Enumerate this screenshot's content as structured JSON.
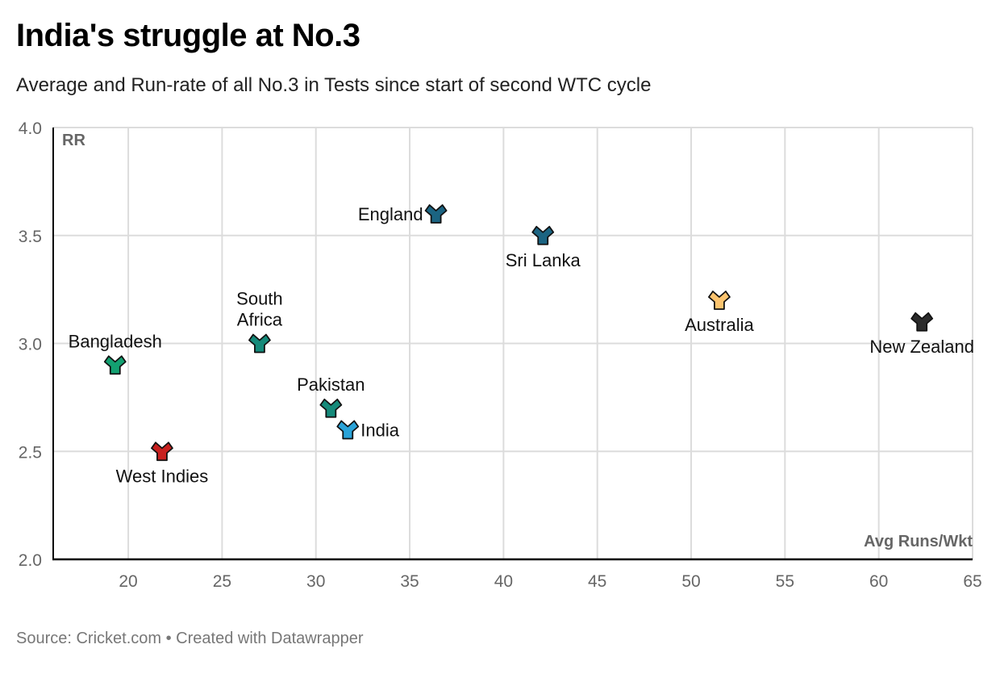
{
  "header": {
    "title": "India's struggle at No.3",
    "subtitle": "Average and Run-rate of all No.3 in Tests since start of second WTC cycle"
  },
  "footer": {
    "source": "Source: Cricket.com • Created with Datawrapper"
  },
  "chart_data": {
    "type": "scatter",
    "title": "India's struggle at No.3",
    "subtitle": "Average and Run-rate of all No.3 in Tests since start of second WTC cycle",
    "xlabel": "Avg Runs/Wkt",
    "ylabel": "RR",
    "xlim": [
      16,
      65
    ],
    "ylim": [
      2.0,
      4.0
    ],
    "xticks": [
      "20",
      "25",
      "30",
      "35",
      "40",
      "45",
      "50",
      "55",
      "60",
      "65"
    ],
    "yticks": [
      "2.0",
      "2.5",
      "3.0",
      "3.5",
      "4.0"
    ],
    "grid": true,
    "points": [
      {
        "name": "England",
        "x": 36.4,
        "y": 3.6,
        "color": "#1b6482",
        "label_pos": "left"
      },
      {
        "name": "Sri Lanka",
        "x": 42.1,
        "y": 3.5,
        "color": "#1b6482",
        "label_pos": "below"
      },
      {
        "name": "Australia",
        "x": 51.5,
        "y": 3.2,
        "color": "#fcc46f",
        "label_pos": "below"
      },
      {
        "name": "New Zealand",
        "x": 62.3,
        "y": 3.1,
        "color": "#2b2b2b",
        "label_pos": "below"
      },
      {
        "name": "South Africa",
        "x": 27.0,
        "y": 3.0,
        "color": "#158a7a",
        "label_pos": "above",
        "lines": [
          "South",
          "Africa"
        ]
      },
      {
        "name": "Bangladesh",
        "x": 19.3,
        "y": 2.9,
        "color": "#13a071",
        "label_pos": "above"
      },
      {
        "name": "Pakistan",
        "x": 30.8,
        "y": 2.7,
        "color": "#158a7a",
        "label_pos": "above"
      },
      {
        "name": "India",
        "x": 31.7,
        "y": 2.6,
        "color": "#2aa3d8",
        "label_pos": "right"
      },
      {
        "name": "West Indies",
        "x": 21.8,
        "y": 2.5,
        "color": "#c8201e",
        "label_pos": "below"
      }
    ]
  }
}
